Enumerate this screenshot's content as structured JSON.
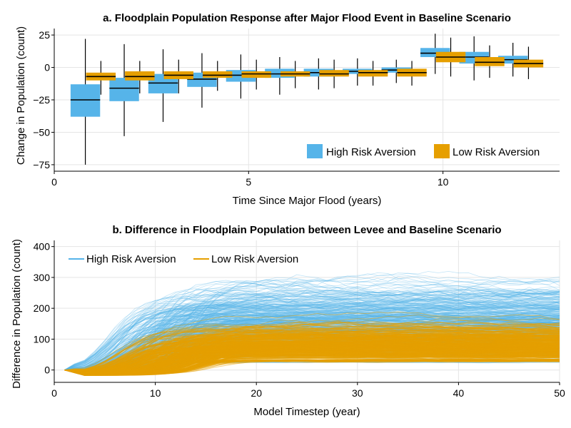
{
  "colors": {
    "high": "#56B4E9",
    "low": "#E69F00",
    "grid": "#e5e5e5",
    "axis": "#000000"
  },
  "chart_data": [
    {
      "type": "box",
      "title": "a. Floodplain Population Response after Major Flood Event in Baseline Scenario",
      "xlabel": "Time Since Major Flood (years)",
      "ylabel": "Change in Population (count)",
      "xlim": [
        0,
        13
      ],
      "ylim": [
        -80,
        30
      ],
      "xticks": [
        0,
        5,
        10
      ],
      "xtick_labels": [
        "0",
        "5",
        "10"
      ],
      "yticks": [
        -75,
        -50,
        -25,
        0,
        25
      ],
      "ytick_labels": [
        "−75",
        "−50",
        "−25",
        "0",
        "25"
      ],
      "grid": true,
      "legend": "bottom-right",
      "series": [
        {
          "name": "High Risk Aversion",
          "color": "#56B4E9",
          "boxes": [
            {
              "x": 0.8,
              "q1": -38,
              "median": -25,
              "q3": -13,
              "whisker_low": -75,
              "whisker_high": 22
            },
            {
              "x": 1.8,
              "q1": -26,
              "median": -16,
              "q3": -8,
              "whisker_low": -53,
              "whisker_high": 18
            },
            {
              "x": 2.8,
              "q1": -20,
              "median": -12,
              "q3": -5,
              "whisker_low": -42,
              "whisker_high": 14
            },
            {
              "x": 3.8,
              "q1": -15,
              "median": -9,
              "q3": -4,
              "whisker_low": -31,
              "whisker_high": 11
            },
            {
              "x": 4.8,
              "q1": -11,
              "median": -6,
              "q3": -2,
              "whisker_low": -24,
              "whisker_high": 10
            },
            {
              "x": 5.8,
              "q1": -8,
              "median": -5,
              "q3": -1,
              "whisker_low": -21,
              "whisker_high": 8
            },
            {
              "x": 6.8,
              "q1": -7,
              "median": -4,
              "q3": -1,
              "whisker_low": -17,
              "whisker_high": 7
            },
            {
              "x": 7.8,
              "q1": -5,
              "median": -3,
              "q3": -1,
              "whisker_low": -14,
              "whisker_high": 7
            },
            {
              "x": 8.8,
              "q1": -4,
              "median": -2,
              "q3": 0,
              "whisker_low": -12,
              "whisker_high": 6
            },
            {
              "x": 9.8,
              "q1": 8,
              "median": 11,
              "q3": 15,
              "whisker_low": -5,
              "whisker_high": 26
            },
            {
              "x": 10.8,
              "q1": 3,
              "median": 8,
              "q3": 12,
              "whisker_low": -10,
              "whisker_high": 24
            },
            {
              "x": 11.8,
              "q1": 3,
              "median": 6,
              "q3": 9,
              "whisker_low": -7,
              "whisker_high": 19
            }
          ]
        },
        {
          "name": "Low Risk Aversion",
          "color": "#E69F00",
          "boxes": [
            {
              "x": 1.2,
              "q1": -10,
              "median": -7,
              "q3": -4,
              "whisker_low": -21,
              "whisker_high": 5
            },
            {
              "x": 2.2,
              "q1": -10,
              "median": -7,
              "q3": -3,
              "whisker_low": -20,
              "whisker_high": 5
            },
            {
              "x": 3.2,
              "q1": -9,
              "median": -6,
              "q3": -3,
              "whisker_low": -20,
              "whisker_high": 6
            },
            {
              "x": 4.2,
              "q1": -8,
              "median": -6,
              "q3": -3,
              "whisker_low": -18,
              "whisker_high": 5
            },
            {
              "x": 5.2,
              "q1": -8,
              "median": -5,
              "q3": -3,
              "whisker_low": -17,
              "whisker_high": 6
            },
            {
              "x": 6.2,
              "q1": -7,
              "median": -5,
              "q3": -3,
              "whisker_low": -16,
              "whisker_high": 5
            },
            {
              "x": 7.2,
              "q1": -7,
              "median": -5,
              "q3": -2,
              "whisker_low": -16,
              "whisker_high": 6
            },
            {
              "x": 8.2,
              "q1": -7,
              "median": -4,
              "q3": -2,
              "whisker_low": -14,
              "whisker_high": 5
            },
            {
              "x": 9.2,
              "q1": -7,
              "median": -4,
              "q3": -1,
              "whisker_low": -14,
              "whisker_high": 5
            },
            {
              "x": 10.2,
              "q1": 4,
              "median": 8,
              "q3": 12,
              "whisker_low": -7,
              "whisker_high": 23
            },
            {
              "x": 11.2,
              "q1": 1,
              "median": 4,
              "q3": 8,
              "whisker_low": -8,
              "whisker_high": 17
            },
            {
              "x": 12.2,
              "q1": 0,
              "median": 3,
              "q3": 6,
              "whisker_low": -9,
              "whisker_high": 16
            }
          ]
        }
      ]
    },
    {
      "type": "line",
      "title": "b. Difference in Floodplain Population between Levee and Baseline Scenario",
      "xlabel": "Model Timestep (year)",
      "ylabel": "Difference in Population (count)",
      "xlim": [
        0,
        50
      ],
      "ylim": [
        -40,
        420
      ],
      "xticks": [
        0,
        10,
        20,
        30,
        40,
        50
      ],
      "xtick_labels": [
        "0",
        "10",
        "20",
        "30",
        "40",
        "50"
      ],
      "yticks": [
        0,
        100,
        200,
        300,
        400
      ],
      "ytick_labels": [
        "0",
        "100",
        "200",
        "300",
        "400"
      ],
      "grid": true,
      "legend": "top-left",
      "x_range": [
        1,
        50
      ],
      "series": [
        {
          "name": "High Risk Aversion",
          "color": "#56B4E9",
          "ensemble_size": 400,
          "plateau_range": [
            25,
            290
          ],
          "plateau_median": 150,
          "rise_time_range": [
            5,
            14
          ],
          "peak_observed": 395
        },
        {
          "name": "Low Risk Aversion",
          "color": "#E69F00",
          "ensemble_size": 400,
          "plateau_range": [
            30,
            160
          ],
          "plateau_median": 80,
          "rise_time_range": [
            6,
            16
          ],
          "peak_observed": 165
        }
      ]
    }
  ]
}
